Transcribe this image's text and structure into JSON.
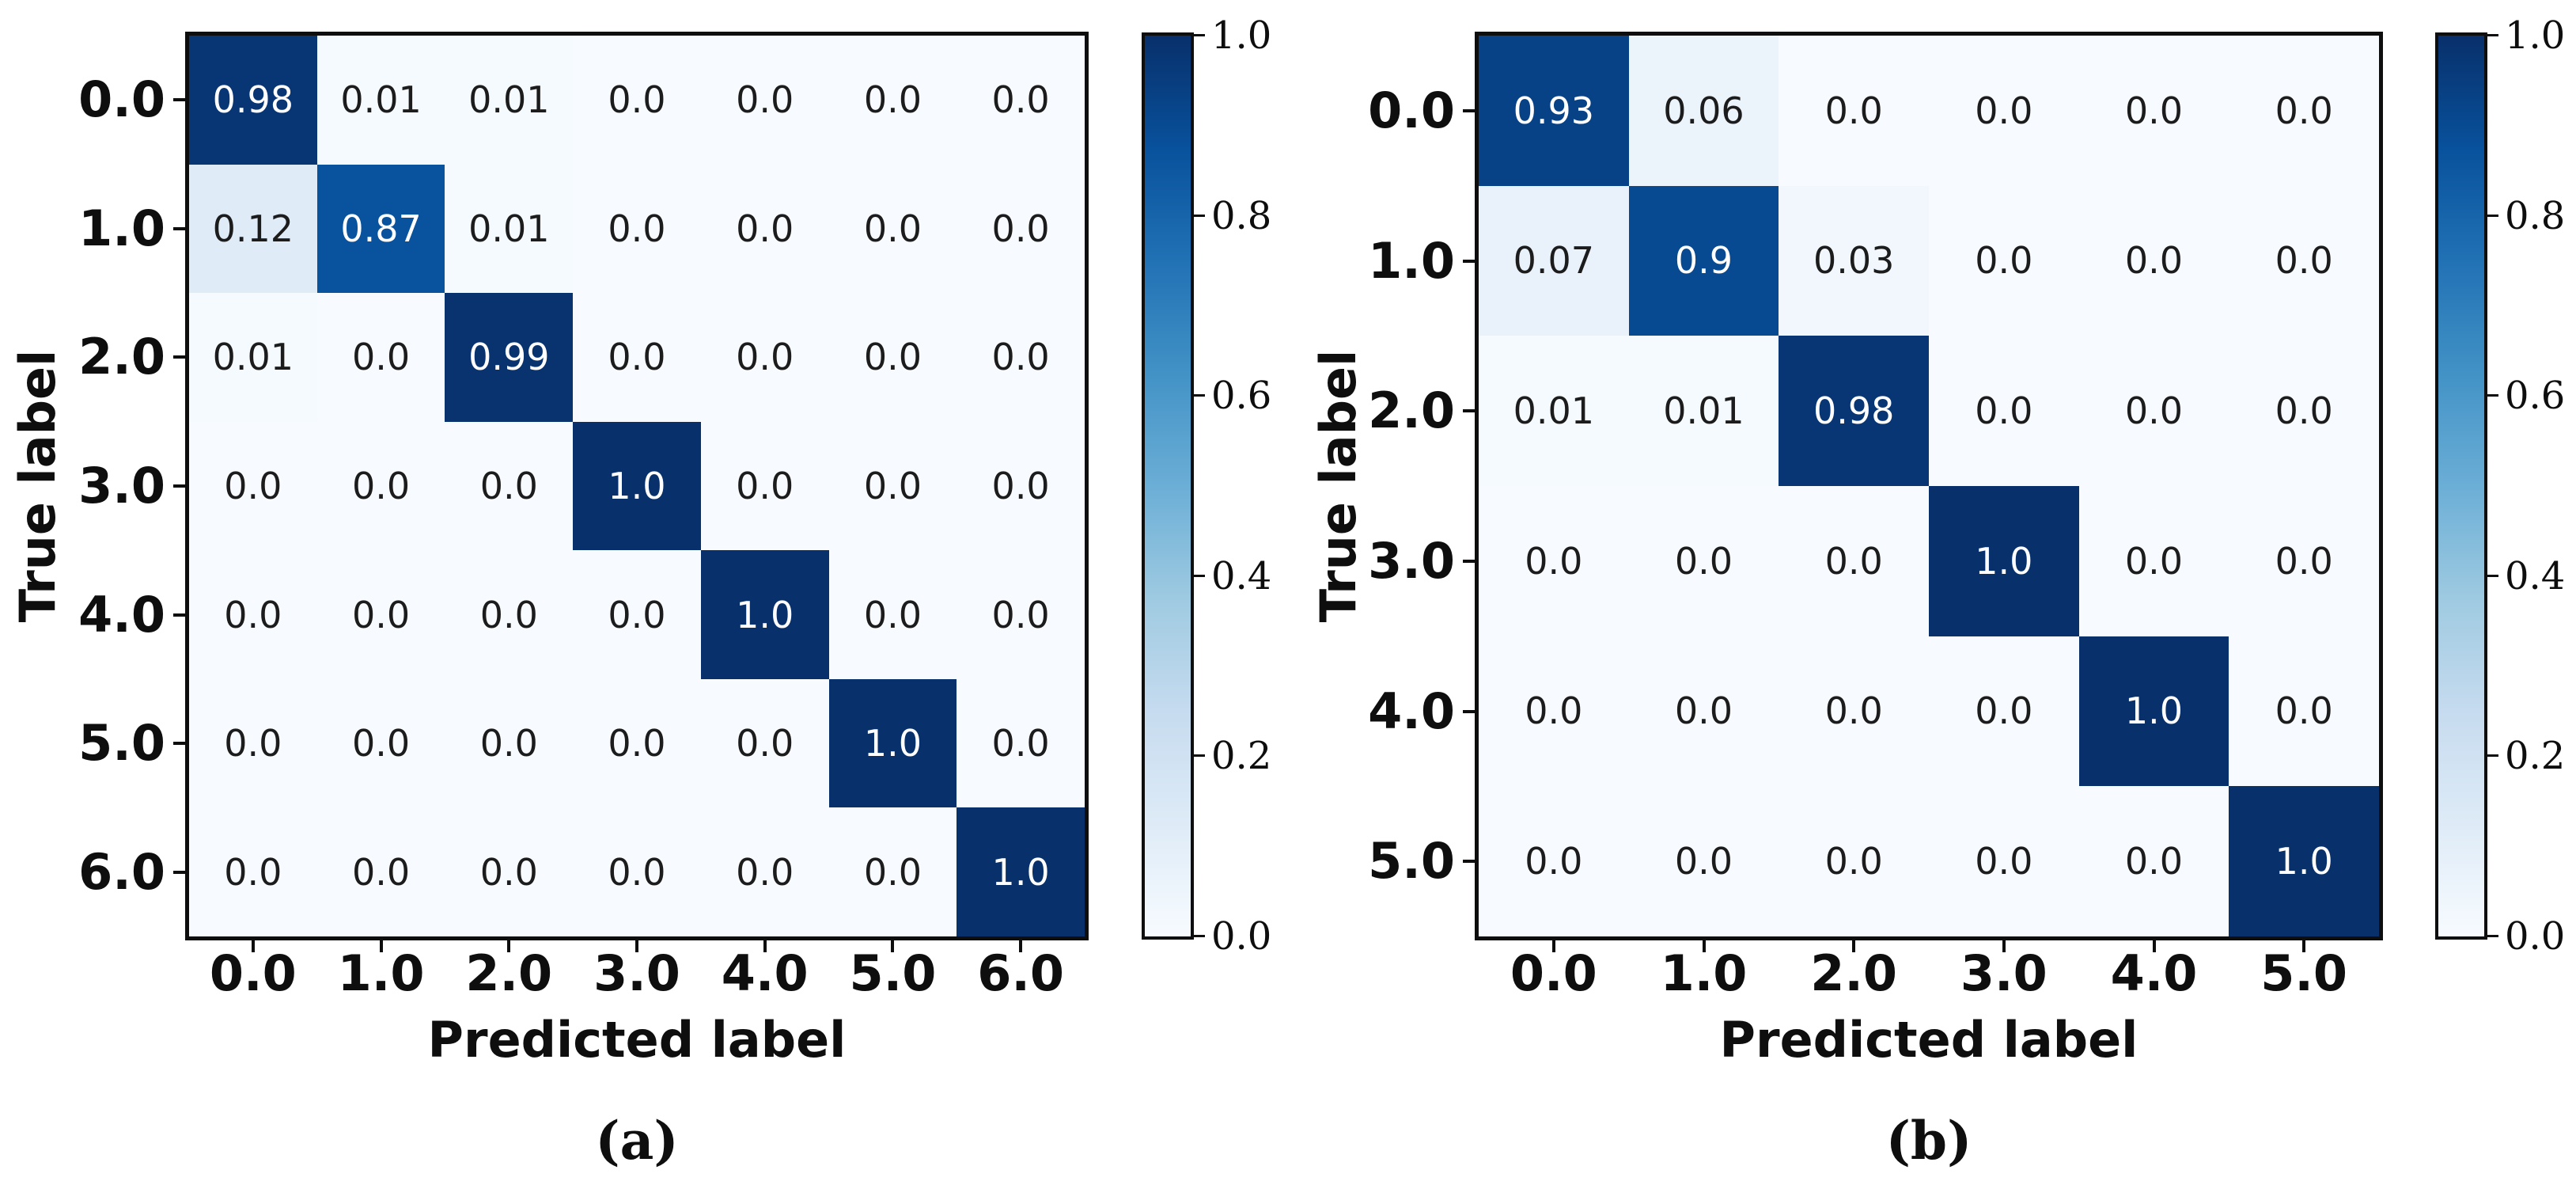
{
  "colors": {
    "background": "#ffffff",
    "spine": "#0e0e0e",
    "tick": "#0e0e0e",
    "label_text": "#0e0e0e",
    "cell_text_dark": "#1c1c1c",
    "cell_text_light": "#ffffff",
    "cmap_positions": [
      0,
      0.125,
      0.25,
      0.375,
      0.5,
      0.625,
      0.75,
      0.875,
      1
    ],
    "cmap_hex": [
      "#f7fbff",
      "#deebf7",
      "#c6dbef",
      "#9ecae1",
      "#6baed6",
      "#4292c6",
      "#2171b5",
      "#08519c",
      "#08306b"
    ]
  },
  "chart_data": [
    {
      "type": "heatmap",
      "caption": "(a)",
      "xlabel": "Predicted label",
      "ylabel": "True label",
      "x_ticklabels": [
        "0.0",
        "1.0",
        "2.0",
        "3.0",
        "4.0",
        "5.0",
        "6.0"
      ],
      "y_ticklabels": [
        "0.0",
        "1.0",
        "2.0",
        "3.0",
        "4.0",
        "5.0",
        "6.0"
      ],
      "matrix": [
        [
          0.98,
          0.01,
          0.01,
          0.0,
          0.0,
          0.0,
          0.0
        ],
        [
          0.12,
          0.87,
          0.01,
          0.0,
          0.0,
          0.0,
          0.0
        ],
        [
          0.01,
          0.0,
          0.99,
          0.0,
          0.0,
          0.0,
          0.0
        ],
        [
          0.0,
          0.0,
          0.0,
          1.0,
          0.0,
          0.0,
          0.0
        ],
        [
          0.0,
          0.0,
          0.0,
          0.0,
          1.0,
          0.0,
          0.0
        ],
        [
          0.0,
          0.0,
          0.0,
          0.0,
          0.0,
          1.0,
          0.0
        ],
        [
          0.0,
          0.0,
          0.0,
          0.0,
          0.0,
          0.0,
          1.0
        ]
      ],
      "colormap": "Blues",
      "vmin": 0,
      "vmax": 1,
      "colorbar_ticklabels": [
        "1.0",
        "0.8",
        "0.6",
        "0.4",
        "0.2",
        "0.0"
      ],
      "grid": false,
      "legend": "colorbar-right"
    },
    {
      "type": "heatmap",
      "caption": "(b)",
      "xlabel": "Predicted label",
      "ylabel": "True label",
      "x_ticklabels": [
        "0.0",
        "1.0",
        "2.0",
        "3.0",
        "4.0",
        "5.0"
      ],
      "y_ticklabels": [
        "0.0",
        "1.0",
        "2.0",
        "3.0",
        "4.0",
        "5.0"
      ],
      "matrix": [
        [
          0.93,
          0.06,
          0.0,
          0.0,
          0.0,
          0.0
        ],
        [
          0.07,
          0.9,
          0.03,
          0.0,
          0.0,
          0.0
        ],
        [
          0.01,
          0.01,
          0.98,
          0.0,
          0.0,
          0.0
        ],
        [
          0.0,
          0.0,
          0.0,
          1.0,
          0.0,
          0.0
        ],
        [
          0.0,
          0.0,
          0.0,
          0.0,
          1.0,
          0.0
        ],
        [
          0.0,
          0.0,
          0.0,
          0.0,
          0.0,
          1.0
        ]
      ],
      "colormap": "Blues",
      "vmin": 0,
      "vmax": 1,
      "colorbar_ticklabels": [
        "1.0",
        "0.8",
        "0.6",
        "0.4",
        "0.2",
        "0.0"
      ],
      "grid": false,
      "legend": "colorbar-right"
    }
  ]
}
